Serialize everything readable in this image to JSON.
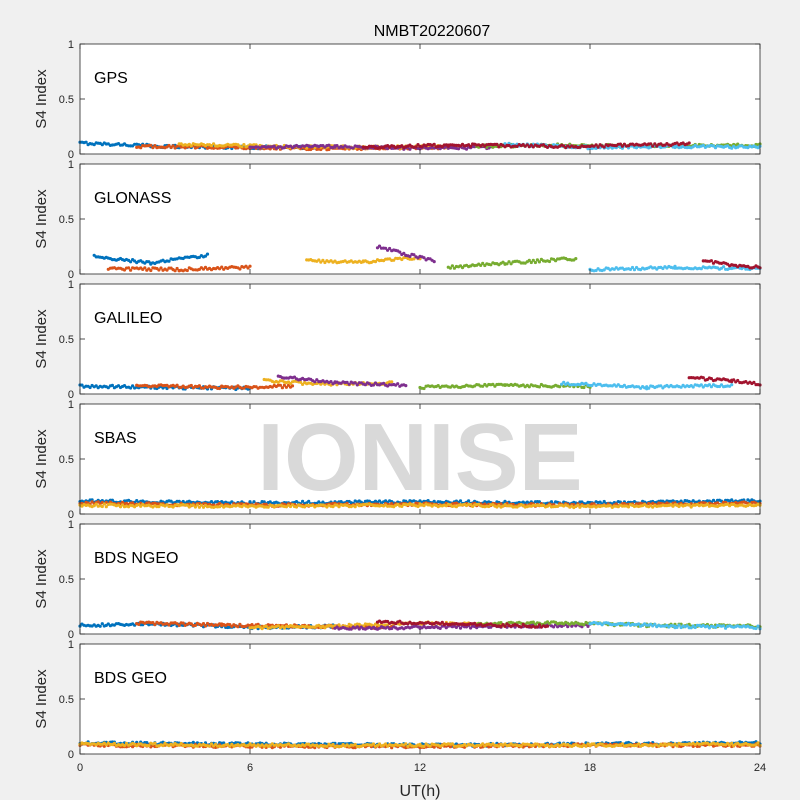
{
  "title": "NMBT20220607",
  "xlabel": "UT(h)",
  "watermark": "IONISE",
  "colors": [
    "#0072BD",
    "#D95319",
    "#EDB120",
    "#7E2F8E",
    "#77AC30",
    "#4DBEEE",
    "#A2142F"
  ],
  "chart_data": [
    {
      "type": "scatter",
      "label": "GPS",
      "ylabel": "S4 Index",
      "xlim": [
        0,
        24
      ],
      "ylim": [
        0,
        1
      ],
      "xticks": [
        0,
        6,
        12,
        18,
        24
      ],
      "yticks": [
        0,
        0.5,
        1
      ],
      "ytick_labels": [
        "0",
        "0.5",
        "1"
      ],
      "series": [
        {
          "x": [
            0.0,
            3.0,
            6.0,
            9.0
          ],
          "y": [
            0.1,
            0.07,
            0.06,
            0.06
          ]
        },
        {
          "x": [
            2.0,
            5.5,
            9.0,
            13.0
          ],
          "y": [
            0.07,
            0.06,
            0.05,
            0.06
          ]
        },
        {
          "x": [
            3.5,
            6.5,
            10.0,
            13.5
          ],
          "y": [
            0.09,
            0.07,
            0.06,
            0.07
          ]
        },
        {
          "x": [
            6.0,
            9.0,
            12.0,
            14.5
          ],
          "y": [
            0.06,
            0.07,
            0.05,
            0.06
          ]
        },
        {
          "x": [
            14.0,
            17.0,
            20.0,
            24.0
          ],
          "y": [
            0.07,
            0.08,
            0.07,
            0.08
          ]
        },
        {
          "x": [
            15.0,
            18.0,
            21.0,
            24.0
          ],
          "y": [
            0.09,
            0.06,
            0.07,
            0.06
          ]
        },
        {
          "x": [
            10.0,
            13.0,
            17.5,
            21.5
          ],
          "y": [
            0.06,
            0.08,
            0.07,
            0.09
          ]
        }
      ]
    },
    {
      "type": "scatter",
      "label": "GLONASS",
      "ylabel": "S4 Index",
      "xlim": [
        0,
        24
      ],
      "ylim": [
        0,
        1
      ],
      "xticks": [
        0,
        6,
        12,
        18,
        24
      ],
      "yticks": [
        0,
        0.5,
        1
      ],
      "ytick_labels": [
        "0",
        "0.5",
        "1"
      ],
      "series": [
        {
          "x": [
            0.5,
            2.5,
            4.5
          ],
          "y": [
            0.16,
            0.1,
            0.17
          ]
        },
        {
          "x": [
            1.0,
            3.5,
            6.0
          ],
          "y": [
            0.05,
            0.04,
            0.06
          ]
        },
        {
          "x": [
            8.0,
            10.0,
            12.0
          ],
          "y": [
            0.12,
            0.11,
            0.15
          ]
        },
        {
          "x": [
            10.5,
            11.5,
            12.5
          ],
          "y": [
            0.25,
            0.18,
            0.12
          ]
        },
        {
          "x": [
            13.0,
            15.0,
            17.5
          ],
          "y": [
            0.06,
            0.1,
            0.14
          ]
        },
        {
          "x": [
            18.0,
            21.0,
            24.0
          ],
          "y": [
            0.04,
            0.06,
            0.05
          ]
        },
        {
          "x": [
            22.0,
            23.0,
            24.0
          ],
          "y": [
            0.12,
            0.08,
            0.06
          ]
        }
      ]
    },
    {
      "type": "scatter",
      "label": "GALILEO",
      "ylabel": "S4 Index",
      "xlim": [
        0,
        24
      ],
      "ylim": [
        0,
        1
      ],
      "xticks": [
        0,
        6,
        12,
        18,
        24
      ],
      "yticks": [
        0,
        0.5,
        1
      ],
      "ytick_labels": [
        "0",
        "0.5",
        "1"
      ],
      "series": [
        {
          "x": [
            0.0,
            3.0,
            6.0
          ],
          "y": [
            0.07,
            0.06,
            0.05
          ]
        },
        {
          "x": [
            2.0,
            5.0,
            7.5
          ],
          "y": [
            0.08,
            0.06,
            0.07
          ]
        },
        {
          "x": [
            6.5,
            8.5,
            11.0
          ],
          "y": [
            0.12,
            0.09,
            0.1
          ]
        },
        {
          "x": [
            7.0,
            9.0,
            11.5
          ],
          "y": [
            0.16,
            0.1,
            0.08
          ]
        },
        {
          "x": [
            12.0,
            15.0,
            18.0
          ],
          "y": [
            0.06,
            0.08,
            0.07
          ]
        },
        {
          "x": [
            17.0,
            20.0,
            23.0
          ],
          "y": [
            0.1,
            0.06,
            0.08
          ]
        },
        {
          "x": [
            21.5,
            23.0,
            24.0
          ],
          "y": [
            0.15,
            0.12,
            0.09
          ]
        }
      ]
    },
    {
      "type": "scatter",
      "label": "SBAS",
      "ylabel": "S4 Index",
      "xlim": [
        0,
        24
      ],
      "ylim": [
        0,
        1
      ],
      "xticks": [
        0,
        6,
        12,
        18,
        24
      ],
      "yticks": [
        0,
        0.5,
        1
      ],
      "ytick_labels": [
        "0",
        "0.5",
        "1"
      ],
      "series": [
        {
          "x": [
            0.0,
            6.0,
            12.0,
            18.0,
            24.0
          ],
          "y": [
            0.12,
            0.1,
            0.11,
            0.1,
            0.12
          ]
        },
        {
          "x": [
            0.0,
            6.0,
            12.0,
            18.0,
            24.0
          ],
          "y": [
            0.1,
            0.08,
            0.09,
            0.08,
            0.1
          ]
        },
        {
          "x": [
            0.0,
            6.0,
            12.0,
            18.0,
            24.0
          ],
          "y": [
            0.08,
            0.07,
            0.08,
            0.07,
            0.08
          ]
        }
      ]
    },
    {
      "type": "scatter",
      "label": "BDS NGEO",
      "ylabel": "S4 Index",
      "xlim": [
        0,
        24
      ],
      "ylim": [
        0,
        1
      ],
      "xticks": [
        0,
        6,
        12,
        18,
        24
      ],
      "yticks": [
        0,
        0.5,
        1
      ],
      "ytick_labels": [
        "0",
        "0.5",
        "1"
      ],
      "series": [
        {
          "x": [
            0.0,
            3.0,
            6.0,
            9.0
          ],
          "y": [
            0.08,
            0.09,
            0.06,
            0.07
          ]
        },
        {
          "x": [
            2.0,
            5.0,
            8.0,
            11.0
          ],
          "y": [
            0.1,
            0.08,
            0.07,
            0.06
          ]
        },
        {
          "x": [
            6.0,
            9.0,
            12.0,
            15.0
          ],
          "y": [
            0.06,
            0.07,
            0.1,
            0.08
          ]
        },
        {
          "x": [
            9.0,
            12.0,
            15.0,
            18.0
          ],
          "y": [
            0.05,
            0.06,
            0.07,
            0.08
          ]
        },
        {
          "x": [
            14.0,
            17.0,
            20.0,
            24.0
          ],
          "y": [
            0.09,
            0.1,
            0.08,
            0.07
          ]
        },
        {
          "x": [
            18.0,
            21.0,
            24.0
          ],
          "y": [
            0.1,
            0.07,
            0.06
          ]
        },
        {
          "x": [
            10.5,
            13.5,
            16.5
          ],
          "y": [
            0.11,
            0.09,
            0.07
          ]
        }
      ]
    },
    {
      "type": "scatter",
      "label": "BDS GEO",
      "ylabel": "S4 Index",
      "xlim": [
        0,
        24
      ],
      "ylim": [
        0,
        1
      ],
      "xticks": [
        0,
        6,
        12,
        18,
        24
      ],
      "yticks": [
        0,
        0.5,
        1
      ],
      "ytick_labels": [
        "0",
        "0.5",
        "1"
      ],
      "xtick_labels": [
        "0",
        "6",
        "12",
        "18",
        "24"
      ],
      "series": [
        {
          "x": [
            0.0,
            6.0,
            12.0,
            18.0,
            24.0
          ],
          "y": [
            0.1,
            0.09,
            0.08,
            0.09,
            0.1
          ]
        },
        {
          "x": [
            0.0,
            6.0,
            12.0,
            18.0,
            24.0
          ],
          "y": [
            0.08,
            0.07,
            0.07,
            0.08,
            0.08
          ]
        },
        {
          "x": [
            0.0,
            6.0,
            12.0,
            18.0,
            24.0
          ],
          "y": [
            0.09,
            0.08,
            0.08,
            0.08,
            0.09
          ]
        }
      ]
    }
  ]
}
